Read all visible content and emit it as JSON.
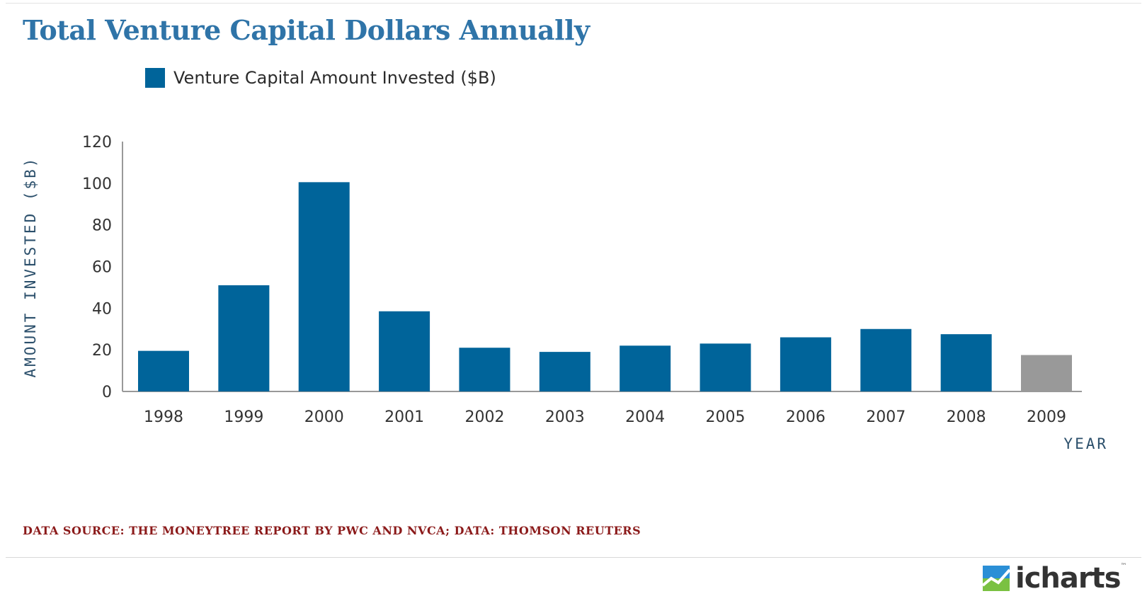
{
  "title": "Total Venture Capital Dollars Annually",
  "legend": {
    "label": "Venture Capital Amount Invested ($B)",
    "color": "#00649a"
  },
  "source_note": "DATA SOURCE: THE MONEYTREE REPORT BY PWC AND NVCA; DATA: THOMSON REUTERS",
  "logo": {
    "text": "icharts",
    "tm": "™",
    "icon": "chart-trend-icon"
  },
  "colors": {
    "bar": "#00649a",
    "bar_highlight": "#999999",
    "axis": "#999999",
    "title": "#2f74a8",
    "source": "#8b1a1a"
  },
  "chart_data": {
    "type": "bar",
    "title": "Total Venture Capital Dollars Annually",
    "xlabel": "YEAR",
    "ylabel": "AMOUNT INVESTED ($B)",
    "ylim": [
      0,
      120
    ],
    "yticks": [
      "0",
      "20",
      "40",
      "60",
      "80",
      "100",
      "120"
    ],
    "grid": false,
    "legend_position": "top-left",
    "categories": [
      "1998",
      "1999",
      "2000",
      "2001",
      "2002",
      "2003",
      "2004",
      "2005",
      "2006",
      "2007",
      "2008",
      "2009"
    ],
    "series": [
      {
        "name": "Venture Capital Amount Invested ($B)",
        "values": [
          19.5,
          51,
          100.5,
          38.5,
          21,
          19,
          22,
          23,
          26,
          30,
          27.5,
          17.5
        ]
      }
    ],
    "highlight_categories": [
      "2009"
    ]
  }
}
